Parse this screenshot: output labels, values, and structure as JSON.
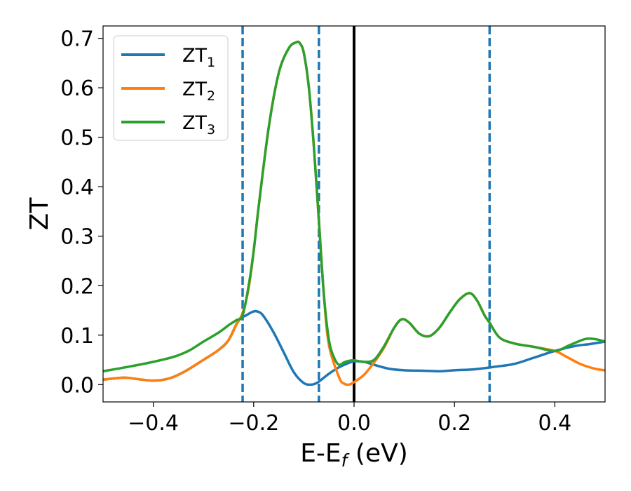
{
  "chart_data": {
    "type": "line",
    "xlabel": "E-E",
    "xlabel_sub": "f",
    "xlabel_unit": " (eV)",
    "ylabel": "ZT",
    "xlim": [
      -0.5,
      0.5
    ],
    "ylim": [
      -0.035,
      0.725
    ],
    "xticks": [
      -0.4,
      -0.2,
      0.0,
      0.2,
      0.4
    ],
    "xtick_labels": [
      "−0.4",
      "−0.2",
      "0.0",
      "0.2",
      "0.4"
    ],
    "yticks": [
      0.0,
      0.1,
      0.2,
      0.3,
      0.4,
      0.5,
      0.6,
      0.7
    ],
    "ytick_labels": [
      "0.0",
      "0.1",
      "0.2",
      "0.3",
      "0.4",
      "0.5",
      "0.6",
      "0.7"
    ],
    "grid": false,
    "legend_position": "top-left",
    "vlines": [
      {
        "x": -0.222,
        "style": "dashed",
        "color": "#1f77b4"
      },
      {
        "x": -0.07,
        "style": "dashed",
        "color": "#1f77b4"
      },
      {
        "x": 0.0,
        "style": "solid",
        "color": "#000000"
      },
      {
        "x": 0.27,
        "style": "dashed",
        "color": "#1f77b4"
      }
    ],
    "series": [
      {
        "name": "ZT",
        "name_sub": "1",
        "color": "#1f77b4",
        "x": [
          -0.5,
          -0.46,
          -0.43,
          -0.4,
          -0.37,
          -0.34,
          -0.3,
          -0.27,
          -0.25,
          -0.23,
          -0.215,
          -0.2,
          -0.19,
          -0.18,
          -0.16,
          -0.14,
          -0.12,
          -0.1,
          -0.085,
          -0.075,
          -0.065,
          -0.05,
          -0.03,
          -0.01,
          0.0,
          0.02,
          0.04,
          0.07,
          0.1,
          0.14,
          0.17,
          0.2,
          0.24,
          0.28,
          0.32,
          0.36,
          0.4,
          0.44,
          0.47,
          0.5
        ],
        "y": [
          0.01,
          0.014,
          0.011,
          0.008,
          0.012,
          0.025,
          0.05,
          0.07,
          0.09,
          0.13,
          0.14,
          0.148,
          0.147,
          0.138,
          0.105,
          0.065,
          0.025,
          0.003,
          0.0,
          0.003,
          0.01,
          0.022,
          0.035,
          0.044,
          0.047,
          0.046,
          0.04,
          0.032,
          0.029,
          0.028,
          0.027,
          0.029,
          0.031,
          0.036,
          0.042,
          0.055,
          0.068,
          0.078,
          0.082,
          0.087
        ]
      },
      {
        "name": "ZT",
        "name_sub": "2",
        "color": "#ff7f0e",
        "x": [
          -0.5,
          -0.46,
          -0.43,
          -0.4,
          -0.37,
          -0.34,
          -0.3,
          -0.27,
          -0.25,
          -0.235,
          -0.222,
          -0.21,
          -0.2,
          -0.19,
          -0.17,
          -0.15,
          -0.13,
          -0.115,
          -0.108,
          -0.1,
          -0.09,
          -0.08,
          -0.07,
          -0.06,
          -0.05,
          -0.03,
          -0.02,
          -0.01,
          0.0,
          0.02,
          0.04,
          0.06,
          0.08,
          0.095,
          0.11,
          0.13,
          0.15,
          0.17,
          0.19,
          0.21,
          0.23,
          0.245,
          0.26,
          0.27,
          0.29,
          0.32,
          0.36,
          0.4,
          0.42,
          0.45,
          0.48,
          0.5
        ],
        "y": [
          0.01,
          0.014,
          0.011,
          0.008,
          0.012,
          0.025,
          0.05,
          0.07,
          0.09,
          0.12,
          0.145,
          0.195,
          0.27,
          0.36,
          0.52,
          0.63,
          0.68,
          0.692,
          0.69,
          0.67,
          0.6,
          0.48,
          0.33,
          0.18,
          0.08,
          0.015,
          0.002,
          0.0,
          0.005,
          0.02,
          0.045,
          0.075,
          0.115,
          0.132,
          0.125,
          0.103,
          0.098,
          0.115,
          0.145,
          0.172,
          0.185,
          0.17,
          0.14,
          0.125,
          0.095,
          0.083,
          0.076,
          0.068,
          0.058,
          0.042,
          0.032,
          0.029
        ]
      },
      {
        "name": "ZT",
        "name_sub": "3",
        "color": "#2ca02c",
        "x": [
          -0.5,
          -0.45,
          -0.4,
          -0.36,
          -0.33,
          -0.3,
          -0.27,
          -0.25,
          -0.235,
          -0.222,
          -0.21,
          -0.2,
          -0.19,
          -0.17,
          -0.15,
          -0.13,
          -0.115,
          -0.108,
          -0.1,
          -0.09,
          -0.08,
          -0.07,
          -0.06,
          -0.05,
          -0.04,
          -0.03,
          -0.02,
          -0.01,
          0.0,
          0.02,
          0.04,
          0.06,
          0.08,
          0.095,
          0.11,
          0.13,
          0.15,
          0.17,
          0.19,
          0.21,
          0.23,
          0.245,
          0.26,
          0.27,
          0.29,
          0.32,
          0.36,
          0.4,
          0.43,
          0.46,
          0.48,
          0.5
        ],
        "y": [
          0.027,
          0.036,
          0.046,
          0.056,
          0.068,
          0.087,
          0.105,
          0.12,
          0.13,
          0.14,
          0.2,
          0.27,
          0.36,
          0.52,
          0.63,
          0.68,
          0.692,
          0.69,
          0.67,
          0.6,
          0.48,
          0.33,
          0.18,
          0.09,
          0.055,
          0.04,
          0.045,
          0.048,
          0.049,
          0.046,
          0.05,
          0.078,
          0.115,
          0.132,
          0.125,
          0.103,
          0.098,
          0.115,
          0.145,
          0.172,
          0.185,
          0.17,
          0.14,
          0.125,
          0.095,
          0.083,
          0.076,
          0.068,
          0.08,
          0.092,
          0.092,
          0.087
        ]
      }
    ]
  }
}
